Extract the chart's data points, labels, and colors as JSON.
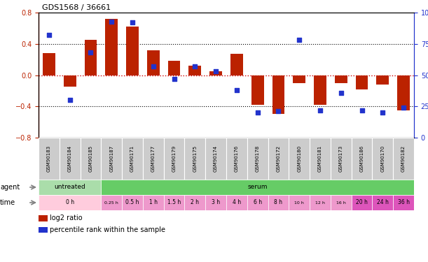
{
  "title": "GDS1568 / 36661",
  "samples": [
    "GSM90183",
    "GSM90184",
    "GSM90185",
    "GSM90187",
    "GSM90171",
    "GSM90177",
    "GSM90179",
    "GSM90175",
    "GSM90174",
    "GSM90176",
    "GSM90178",
    "GSM90172",
    "GSM90180",
    "GSM90181",
    "GSM90173",
    "GSM90186",
    "GSM90170",
    "GSM90182"
  ],
  "log2_ratio": [
    0.28,
    -0.15,
    0.45,
    0.72,
    0.62,
    0.32,
    0.18,
    0.12,
    0.05,
    0.27,
    -0.38,
    -0.5,
    -0.1,
    -0.38,
    -0.1,
    -0.18,
    -0.12,
    -0.45
  ],
  "percentile": [
    82,
    30,
    68,
    93,
    92,
    57,
    47,
    57,
    53,
    38,
    20,
    21,
    78,
    22,
    36,
    22,
    20,
    24
  ],
  "ylim_left": [
    -0.8,
    0.8
  ],
  "ylim_right": [
    0,
    100
  ],
  "yticks_left": [
    -0.8,
    -0.4,
    0.0,
    0.4,
    0.8
  ],
  "yticks_right": [
    0,
    25,
    50,
    75,
    100
  ],
  "bar_color": "#bb2200",
  "dot_color": "#2233cc",
  "hline_color": "#cc0000",
  "untreated_color": "#aaddaa",
  "serum_color": "#66cc66",
  "time_color_light": "#ffccdd",
  "time_color_mid": "#ee99cc",
  "time_color_dark": "#dd55bb",
  "sample_bg_color": "#cccccc",
  "time_spans": [
    {
      "label": "0 h",
      "start": 0,
      "end": 3,
      "shade": 0
    },
    {
      "label": "0.25 h",
      "start": 3,
      "end": 4,
      "shade": 1
    },
    {
      "label": "0.5 h",
      "start": 4,
      "end": 5,
      "shade": 1
    },
    {
      "label": "1 h",
      "start": 5,
      "end": 6,
      "shade": 1
    },
    {
      "label": "1.5 h",
      "start": 6,
      "end": 7,
      "shade": 1
    },
    {
      "label": "2 h",
      "start": 7,
      "end": 8,
      "shade": 1
    },
    {
      "label": "3 h",
      "start": 8,
      "end": 9,
      "shade": 2
    },
    {
      "label": "4 h",
      "start": 9,
      "end": 10,
      "shade": 2
    },
    {
      "label": "6 h",
      "start": 10,
      "end": 11,
      "shade": 2
    },
    {
      "label": "8 h",
      "start": 11,
      "end": 12,
      "shade": 2
    },
    {
      "label": "10 h",
      "start": 12,
      "end": 13,
      "shade": 2
    },
    {
      "label": "12 h",
      "start": 13,
      "end": 14,
      "shade": 2
    },
    {
      "label": "16 h",
      "start": 14,
      "end": 15,
      "shade": 2
    },
    {
      "label": "20 h",
      "start": 15,
      "end": 16,
      "shade": 3
    },
    {
      "label": "24 h",
      "start": 16,
      "end": 17,
      "shade": 3
    },
    {
      "label": "36 h",
      "start": 17,
      "end": 18,
      "shade": 3
    }
  ],
  "legend_bar_label": "log2 ratio",
  "legend_dot_label": "percentile rank within the sample"
}
